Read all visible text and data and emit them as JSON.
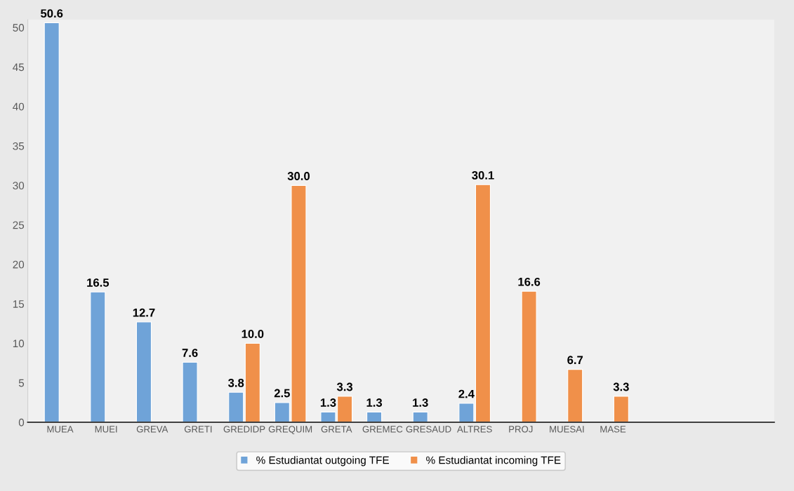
{
  "chart_data": {
    "type": "bar",
    "categories": [
      "MUEA",
      "MUEI",
      "GREVA",
      "GRETI",
      "GREDIDP",
      "GREQUIM",
      "GRETA",
      "GREMEC",
      "GRESAUD",
      "ALTRES",
      "PROJ",
      "MUESAI",
      "MASE"
    ],
    "series": [
      {
        "name": "% Estudiantat outgoing TFE",
        "color": "#6fa3d8",
        "values": [
          50.6,
          16.5,
          12.7,
          7.6,
          3.8,
          2.5,
          1.3,
          1.3,
          1.3,
          2.4,
          null,
          null,
          null
        ],
        "value_labels": [
          "50.6",
          "16.5",
          "12.7",
          "7.6",
          "3.8",
          "2.5",
          "1.3",
          "1.3",
          "1.3",
          "2.4",
          null,
          null,
          null
        ]
      },
      {
        "name": "% Estudiantat incoming TFE",
        "color": "#f0904a",
        "values": [
          null,
          null,
          null,
          null,
          10.0,
          30.0,
          3.3,
          null,
          null,
          30.1,
          16.6,
          6.7,
          3.3
        ],
        "value_labels": [
          null,
          null,
          null,
          null,
          "10.0",
          "30.0",
          "3.3",
          null,
          null,
          "30.1",
          "16.6",
          "6.7",
          "3.3"
        ]
      }
    ],
    "ylim": [
      0,
      51
    ],
    "yticks": [
      0,
      5,
      10,
      15,
      20,
      25,
      30,
      35,
      40,
      45,
      50
    ],
    "grid": false,
    "legend": "bottom"
  }
}
